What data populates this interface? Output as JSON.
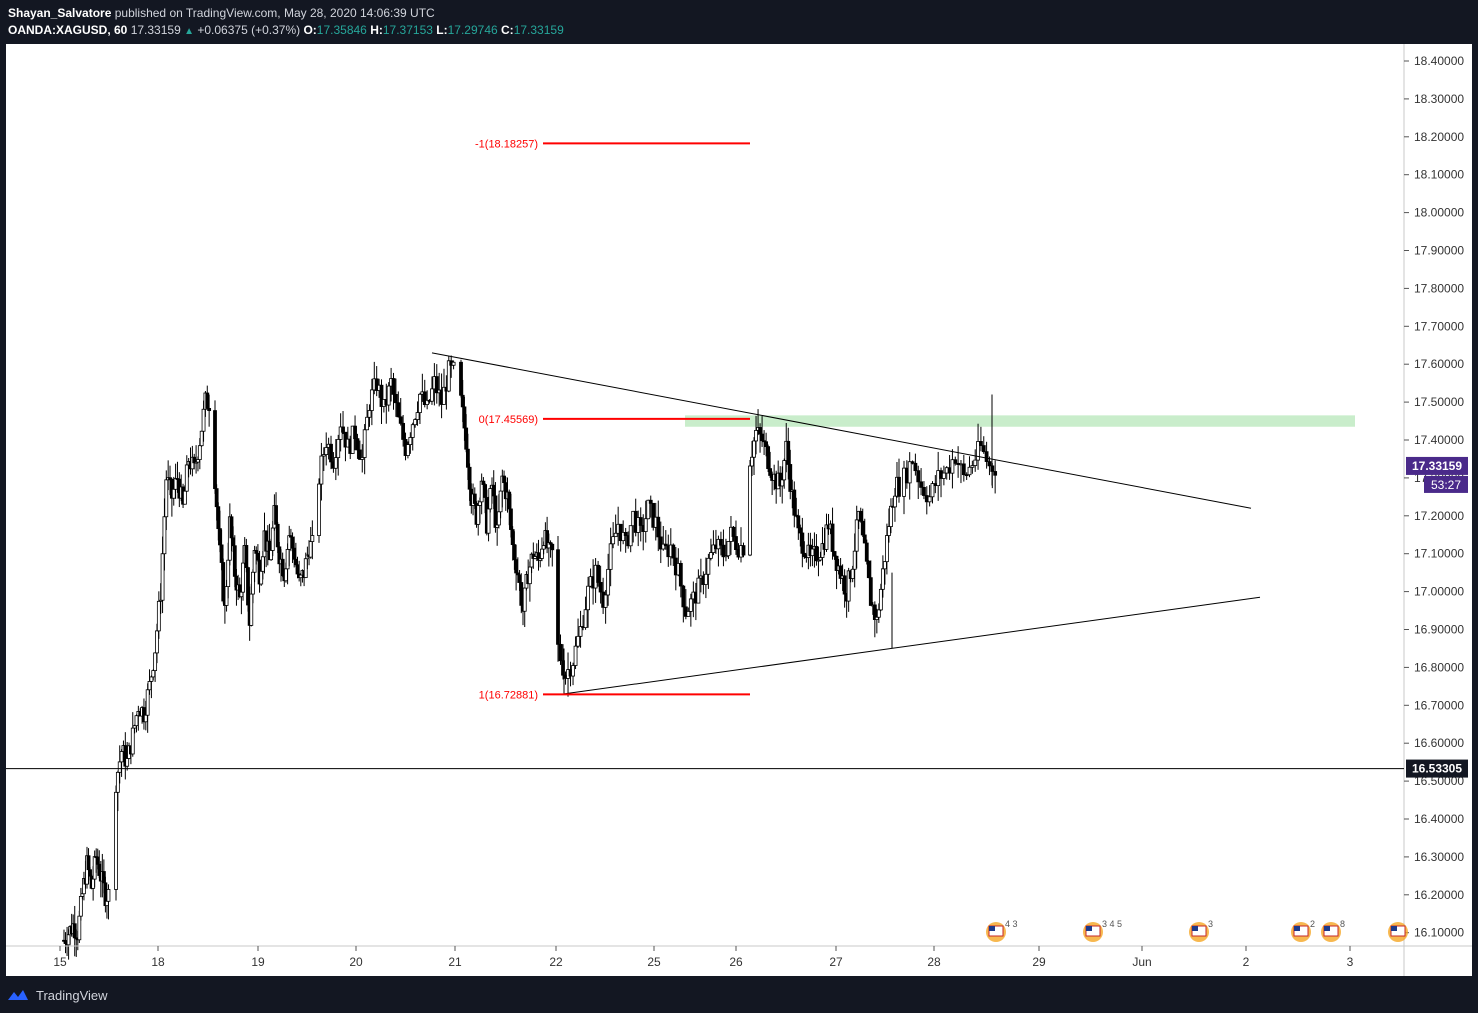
{
  "header": {
    "author": "Shayan_Salvatore",
    "published_text": "published on TradingView.com, May 28, 2020 14:06:39 UTC",
    "symbol": "OANDA:XAGUSD, 60",
    "last": "17.33159",
    "change": "+0.06375 (+0.37%)",
    "o_label": "O:",
    "o_value": "17.35846",
    "h_label": "H:",
    "h_value": "17.37153",
    "l_label": "L:",
    "l_value": "17.29746",
    "c_label": "C:",
    "c_value": "17.33159"
  },
  "footer": {
    "brand": "TradingView"
  },
  "colors": {
    "fib_line": "#ff0000",
    "resistance_zone": "#b7e7b9",
    "price_badge": "#4a2a8a",
    "hline_badge": "#131722"
  },
  "chart_data": {
    "type": "candlestick",
    "symbol": "OANDA:XAGUSD",
    "interval": "60",
    "ylim": [
      16.06,
      18.45
    ],
    "y_ticks": [
      "18.40000",
      "18.30000",
      "18.20000",
      "18.10000",
      "18.00000",
      "17.90000",
      "17.80000",
      "17.70000",
      "17.60000",
      "17.50000",
      "17.40000",
      "17.30000",
      "17.20000",
      "17.10000",
      "17.00000",
      "16.90000",
      "16.80000",
      "16.70000",
      "16.60000",
      "16.50000",
      "16.40000",
      "16.30000",
      "16.20000",
      "16.10000"
    ],
    "x_ticks": [
      "15",
      "18",
      "19",
      "20",
      "21",
      "22",
      "25",
      "26",
      "27",
      "28",
      "29",
      "Jun",
      "2",
      "3"
    ],
    "current_price": {
      "value": 17.33159,
      "label": "17.33159",
      "countdown": "53:27"
    },
    "horizontal_line": {
      "value": 16.53305,
      "label": "16.53305"
    },
    "fib_levels": [
      {
        "label": "-1(18.18257)",
        "value": 18.18257
      },
      {
        "label": "0(17.45569)",
        "value": 17.45569
      },
      {
        "label": "1(16.72881)",
        "value": 16.72881
      }
    ],
    "resistance_zone": {
      "from": 17.435,
      "to": 17.465
    },
    "trendlines": [
      {
        "name": "descending",
        "from": {
          "x": "May 20 18:00",
          "y": 17.63
        },
        "to": {
          "x": "Jun 2 10:00",
          "y": 17.22
        }
      },
      {
        "name": "ascending",
        "from": {
          "x": "May 22 00:00",
          "y": 16.73
        },
        "to": {
          "x": "Jun 2 12:00",
          "y": 16.985
        }
      }
    ],
    "event_markers": [
      {
        "label": "4 3"
      },
      {
        "label": "3 4 5"
      },
      {
        "label": "3"
      },
      {
        "label": "2"
      },
      {
        "label": "8"
      },
      {
        "label": ""
      }
    ],
    "candles_close_path": [
      [
        16.08,
        16.1,
        16.12,
        16.1,
        16.2,
        16.28,
        16.22,
        16.3,
        16.25,
        16.2
      ],
      [
        16.5,
        16.58,
        16.55,
        16.62,
        16.7,
        16.68,
        16.75,
        16.85,
        17.0,
        17.3,
        17.25,
        17.3,
        17.22,
        17.35,
        17.32,
        17.4,
        17.5
      ],
      [
        17.3,
        17.1,
        16.95,
        17.18,
        17.05,
        16.98,
        17.1,
        16.92,
        17.12,
        17.05,
        17.15,
        17.08,
        17.2,
        17.1,
        17.05,
        17.15,
        17.1,
        17.02,
        17.05,
        17.12
      ],
      [
        17.3,
        17.4,
        17.35,
        17.45,
        17.38,
        17.42,
        17.35,
        17.5,
        17.55,
        17.48,
        17.55,
        17.45,
        17.38,
        17.45,
        17.52,
        17.48,
        17.55,
        17.5,
        17.58
      ],
      [
        17.5,
        17.4,
        17.25,
        17.2,
        17.3,
        17.18,
        17.28,
        17.15,
        17.3,
        17.25,
        17.12,
        17.05,
        16.95,
        17.05,
        17.1,
        17.08,
        17.15,
        17.1
      ],
      [
        16.85,
        16.78,
        16.82,
        16.9,
        17.0,
        17.05,
        16.98,
        17.1,
        17.18,
        17.12,
        17.2,
        17.15,
        17.22,
        17.18,
        17.1,
        17.12,
        17.05,
        16.95,
        16.98,
        17.02,
        17.08,
        17.12,
        17.1,
        17.15,
        17.12
      ],
      [
        17.35,
        17.42,
        17.4,
        17.35,
        17.3,
        17.28,
        17.38,
        17.25,
        17.15,
        17.12,
        17.08,
        17.1,
        17.12,
        17.18,
        17.1,
        17.05,
        17.0,
        17.08,
        17.2,
        17.1,
        16.98,
        16.92,
        17.05,
        17.18,
        17.28
      ],
      [
        17.3,
        17.35,
        17.28,
        17.25,
        17.3,
        17.32,
        17.36,
        17.3,
        17.34,
        17.38,
        17.33
      ]
    ]
  }
}
